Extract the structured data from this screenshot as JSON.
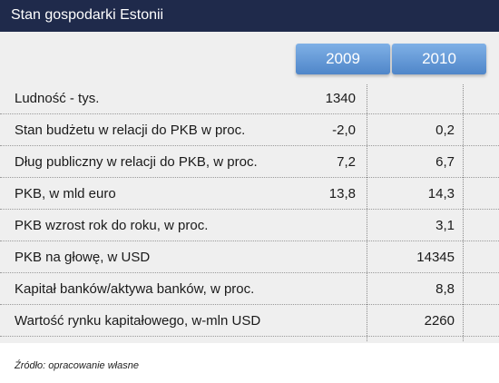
{
  "title": "Stan gospodarki Estonii",
  "columns": [
    "2009",
    "2010"
  ],
  "rows": [
    {
      "label": "Ludność - tys.",
      "v2009": "1340",
      "v2010": ""
    },
    {
      "label": "Stan budżetu w relacji do PKB w proc.",
      "v2009": "-2,0",
      "v2010": "0,2"
    },
    {
      "label": "Dług publiczny w relacji do PKB, w proc.",
      "v2009": "7,2",
      "v2010": "6,7"
    },
    {
      "label": "PKB, w mld euro",
      "v2009": "13,8",
      "v2010": "14,3"
    },
    {
      "label": "PKB wzrost rok do roku, w proc.",
      "v2009": "",
      "v2010": "3,1"
    },
    {
      "label": "PKB na głowę, w USD",
      "v2009": "",
      "v2010": "14345"
    },
    {
      "label": "Kapitał banków/aktywa banków, w proc.",
      "v2009": "",
      "v2010": "8,8"
    },
    {
      "label": "Wartość rynku kapitałowego, w-mln USD",
      "v2009": "",
      "v2010": "2260"
    }
  ],
  "source": "Źródło: opracowanie własne"
}
